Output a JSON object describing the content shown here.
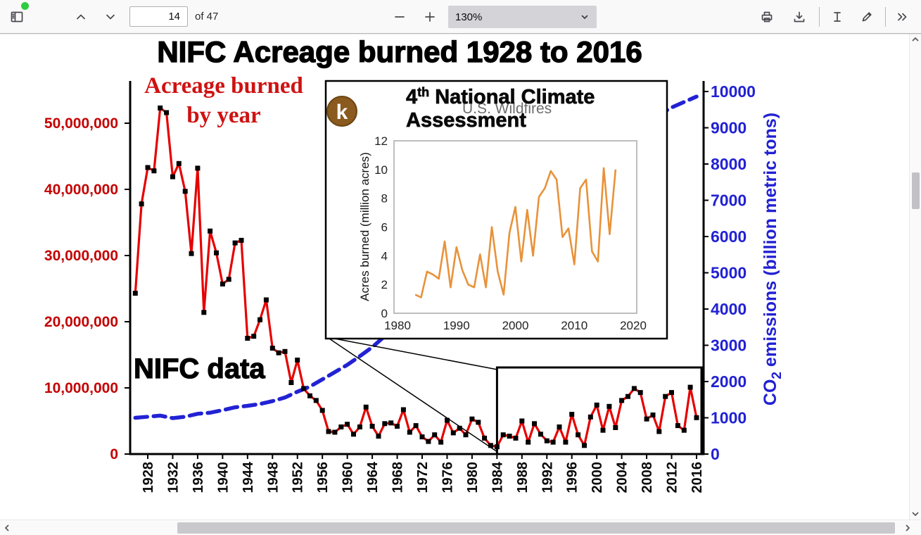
{
  "toolbar": {
    "page_input_value": "14",
    "pages_total_label": "of 47",
    "zoom_value": "130%"
  },
  "icons": {
    "sidebar_toggle": "sidebar-panel",
    "recording_dot": "green-dot",
    "previous_page": "chevron-up",
    "next_page": "chevron-down",
    "zoom_out": "minus",
    "zoom_in": "plus",
    "zoom_caret": "chevron-down",
    "print": "printer",
    "save": "download-tray",
    "text_tool": "i-beam",
    "draw_tool": "pen",
    "more_tools": "double-chevron-right",
    "scroll_up": "chevron-up",
    "scroll_down": "chevron-down",
    "scroll_left": "chevron-left",
    "scroll_right": "chevron-right"
  },
  "colors": {
    "toolbar_bg": "#f9f9fa",
    "accent_red": "#c40000",
    "accent_blue": "#2121d3",
    "series_red": "#e60000",
    "series_blue": "#2222d4",
    "series_orange": "#e8923a",
    "badge_brown": "#8a5a1e"
  },
  "chart_data": [
    {
      "type": "line",
      "title": "NIFC Acreage burned 1928 to 2016",
      "annotation_lines": [
        "Acreage burned",
        "by year"
      ],
      "annotation_data_source": "NIFC data",
      "x_ticks": [
        1928,
        1932,
        1936,
        1940,
        1944,
        1948,
        1952,
        1956,
        1960,
        1964,
        1968,
        1972,
        1976,
        1980,
        1984,
        1988,
        1992,
        1996,
        2000,
        2004,
        2008,
        2012,
        2016
      ],
      "left_axis": {
        "units": "acres",
        "color": "#c40000",
        "ticks": [
          {
            "value": 50,
            "label": "50,000,000"
          },
          {
            "value": 40,
            "label": "40,000,000"
          },
          {
            "value": 30,
            "label": "30,000,000"
          },
          {
            "value": 20,
            "label": "20,000,000"
          },
          {
            "value": 10,
            "label": "10,000,000"
          },
          {
            "value": 0,
            "label": "0"
          }
        ]
      },
      "right_axis": {
        "color": "#2121d3",
        "label_parts": [
          "CO",
          "2",
          " emissions (billion metric tons)"
        ],
        "ticks": [
          10000,
          9000,
          8000,
          7000,
          6000,
          5000,
          4000,
          3000,
          2000,
          1000,
          0
        ]
      },
      "highlight_box_years": [
        1984,
        2016
      ],
      "series": [
        {
          "name": "Acreage burned by year",
          "color": "#e60000",
          "marker_color": "#000000",
          "start_year": 1926,
          "values_million_acres": [
            24.3,
            37.8,
            43.3,
            42.8,
            52.3,
            51.6,
            41.9,
            43.9,
            39.7,
            30.3,
            43.2,
            21.4,
            33.7,
            30.4,
            25.7,
            26.4,
            31.9,
            32.3,
            17.5,
            17.8,
            20.3,
            23.3,
            16.0,
            15.3,
            15.5,
            10.8,
            14.2,
            9.9,
            8.8,
            8.1,
            6.6,
            3.4,
            3.3,
            4.1,
            4.5,
            3.0,
            4.1,
            7.1,
            4.2,
            2.7,
            4.6,
            4.7,
            4.2,
            6.7,
            3.3,
            4.3,
            2.6,
            1.9,
            2.9,
            1.8,
            5.1,
            3.2,
            3.9,
            2.9,
            5.3,
            4.8,
            2.4,
            1.3,
            1.1,
            2.9,
            2.7,
            2.4,
            5.0,
            1.8,
            4.6,
            3.0,
            2.0,
            1.8,
            4.1,
            1.8,
            6.0,
            2.9,
            1.3,
            5.6,
            7.4,
            3.6,
            7.2,
            4.0,
            8.1,
            8.7,
            9.9,
            9.3,
            5.3,
            5.9,
            3.4,
            8.7,
            9.3,
            4.3,
            3.6,
            10.1,
            5.5
          ]
        },
        {
          "name": "CO2 emissions",
          "color": "#2222d4",
          "style": "dashed",
          "points_year_value": [
            [
              1926,
              1000
            ],
            [
              1928,
              1030
            ],
            [
              1930,
              1060
            ],
            [
              1932,
              990
            ],
            [
              1934,
              1030
            ],
            [
              1936,
              1110
            ],
            [
              1938,
              1140
            ],
            [
              1940,
              1210
            ],
            [
              1942,
              1290
            ],
            [
              1944,
              1330
            ],
            [
              1946,
              1380
            ],
            [
              1948,
              1460
            ],
            [
              1950,
              1560
            ],
            [
              1952,
              1720
            ],
            [
              1954,
              1860
            ],
            [
              1956,
              2060
            ],
            [
              1958,
              2260
            ],
            [
              1960,
              2460
            ],
            [
              1962,
              2700
            ],
            [
              1964,
              2950
            ],
            [
              1966,
              3250
            ],
            [
              1968,
              3560
            ],
            [
              1970,
              3920
            ],
            [
              1972,
              4200
            ],
            [
              1974,
              4420
            ],
            [
              1976,
              4720
            ],
            [
              1978,
              5020
            ],
            [
              1980,
              5320
            ],
            [
              1982,
              5460
            ],
            [
              1984,
              5760
            ],
            [
              1986,
              6010
            ],
            [
              1988,
              6360
            ],
            [
              1990,
              6560
            ],
            [
              1992,
              6760
            ],
            [
              1994,
              7010
            ],
            [
              1996,
              7310
            ],
            [
              1998,
              7560
            ],
            [
              2000,
              7860
            ],
            [
              2002,
              8110
            ],
            [
              2004,
              8510
            ],
            [
              2006,
              8910
            ],
            [
              2008,
              9160
            ],
            [
              2010,
              9360
            ],
            [
              2012,
              9560
            ],
            [
              2014,
              9710
            ],
            [
              2016,
              9860
            ]
          ]
        }
      ]
    },
    {
      "type": "line",
      "badge": "k",
      "title_prefix": "4",
      "title_superscript": "th",
      "title_rest": " National Climate",
      "title_line2": "Assessment",
      "subtitle": "U.S. Wildfires",
      "ylabel": "Acres burned (million acres)",
      "y_ticks": [
        0,
        2,
        4,
        6,
        8,
        10,
        12
      ],
      "x_ticks": [
        1980,
        1990,
        2000,
        2010,
        2020
      ],
      "ylim": [
        0,
        12
      ],
      "xlim": [
        1980,
        2021
      ],
      "series": [
        {
          "name": "U.S. acres burned",
          "color": "#e8923a",
          "start_year": 1983,
          "values_million_acres": [
            1.3,
            1.1,
            2.9,
            2.7,
            2.4,
            5.0,
            1.8,
            4.6,
            3.0,
            2.0,
            1.8,
            4.1,
            1.8,
            6.0,
            2.9,
            1.3,
            5.6,
            7.4,
            3.6,
            7.2,
            4.0,
            8.1,
            8.7,
            9.9,
            9.3,
            5.3,
            5.9,
            3.4,
            8.7,
            9.3,
            4.3,
            3.6,
            10.1,
            5.5,
            10.0
          ]
        }
      ]
    }
  ]
}
